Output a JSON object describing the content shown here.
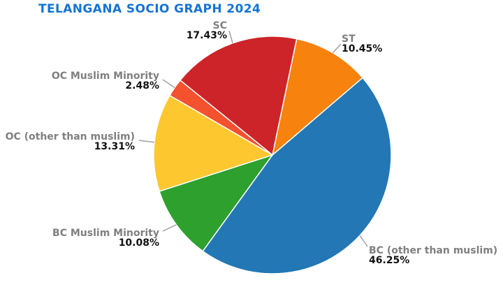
{
  "chart_data": {
    "type": "pie",
    "title": "TELANGANA SOCIO GRAPH 2024",
    "categories": [
      "ST",
      "SC",
      "OC Muslim Minority",
      "OC (other than muslim)",
      "BC Muslim Minority",
      "BC (other than muslim)"
    ],
    "values": [
      10.45,
      17.43,
      2.48,
      13.31,
      10.08,
      46.25
    ],
    "start_angle_deg": 40.6,
    "direction": "counterclockwise",
    "legend": "none",
    "slices": [
      {
        "label": "ST",
        "value": 10.45,
        "pct_label": "10.45%",
        "color": "#f7820d"
      },
      {
        "label": "SC",
        "value": 17.43,
        "pct_label": "17.43%",
        "color": "#cd2429"
      },
      {
        "label": "OC Muslim Minority",
        "value": 2.48,
        "pct_label": "2.48%",
        "color": "#f4512f"
      },
      {
        "label": "OC (other than muslim)",
        "value": 13.31,
        "pct_label": "13.31%",
        "color": "#fdc72f"
      },
      {
        "label": "BC Muslim Minority",
        "value": 10.08,
        "pct_label": "10.08%",
        "color": "#2da02d"
      },
      {
        "label": "BC (other than muslim)",
        "value": 46.25,
        "pct_label": "46.25%",
        "color": "#2277b4"
      }
    ]
  },
  "style_colors": {
    "title": "#1673d1",
    "slice_label": "#7f7f7f",
    "pct_label": "#121212",
    "leader_line": "#a0a0a0",
    "slice_border": "#ffffff"
  }
}
